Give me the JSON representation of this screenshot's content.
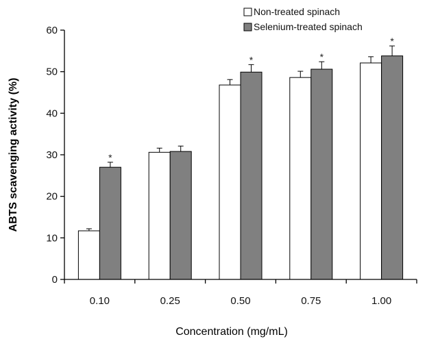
{
  "chart_data": {
    "type": "bar",
    "title": "",
    "xlabel": "Concentration (mg/mL)",
    "ylabel": "ABTS scavenging activity (%)",
    "ylim": [
      0,
      60
    ],
    "yticks": [
      0,
      10,
      20,
      30,
      40,
      50,
      60
    ],
    "categories": [
      "0.10",
      "0.25",
      "0.50",
      "0.75",
      "1.00"
    ],
    "legend_position": "top-right",
    "grid": false,
    "significance_marker": "*",
    "series": [
      {
        "name": "Non-treated spinach",
        "color": "#ffffff",
        "values": [
          11.7,
          30.6,
          46.8,
          48.6,
          52.1
        ],
        "errors": [
          0.5,
          1.0,
          1.3,
          1.5,
          1.5
        ],
        "significant": [
          false,
          false,
          false,
          false,
          false
        ]
      },
      {
        "name": "Selenium-treated spinach",
        "color": "#808080",
        "values": [
          27.0,
          30.8,
          49.9,
          50.6,
          53.8
        ],
        "errors": [
          1.2,
          1.3,
          1.8,
          1.8,
          2.4
        ],
        "significant": [
          true,
          false,
          true,
          true,
          true
        ]
      }
    ]
  }
}
